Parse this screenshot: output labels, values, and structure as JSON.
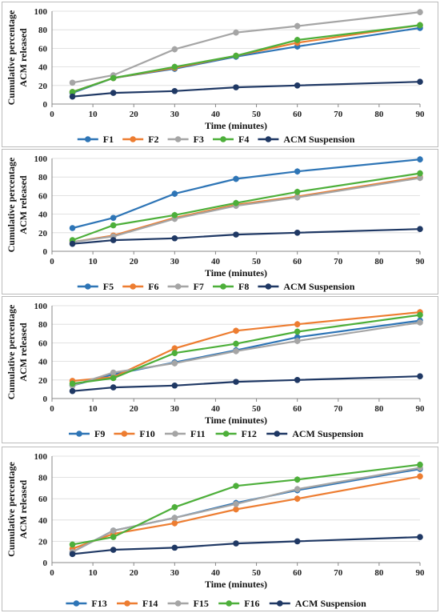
{
  "chart_data": [
    {
      "type": "line",
      "x": [
        5,
        15,
        30,
        45,
        60,
        90
      ],
      "xlabel": "Time (minutes)",
      "ylabel": [
        "Cumulative percentage",
        "ACM released"
      ],
      "xlim": [
        0,
        90
      ],
      "ylim": [
        0,
        100
      ],
      "xticks": [
        "0",
        "10",
        "20",
        "30",
        "40",
        "50",
        "60",
        "70",
        "80",
        "90"
      ],
      "yticks": [
        "0",
        "20",
        "40",
        "60",
        "80",
        "100"
      ],
      "legend_position": "bottom",
      "grid": "horizontal",
      "series": [
        {
          "name": "F1",
          "color": "#2e75b6",
          "values": [
            12,
            28,
            38,
            51,
            62,
            82
          ]
        },
        {
          "name": "F2",
          "color": "#ed7d31",
          "values": [
            13,
            28,
            39,
            52,
            66,
            85
          ]
        },
        {
          "name": "F3",
          "color": "#a5a5a5",
          "values": [
            23,
            31,
            59,
            77,
            84,
            99
          ]
        },
        {
          "name": "F4",
          "color": "#4daf3a",
          "values": [
            13,
            28,
            40,
            52,
            69,
            85
          ]
        },
        {
          "name": "ACM Suspension",
          "color": "#1f3864",
          "values": [
            8,
            12,
            14,
            18,
            20,
            24
          ]
        }
      ]
    },
    {
      "type": "line",
      "x": [
        5,
        15,
        30,
        45,
        60,
        90
      ],
      "xlabel": "Time (minutes)",
      "ylabel": [
        "Cumulative percentage",
        "ACM released"
      ],
      "xlim": [
        0,
        90
      ],
      "ylim": [
        0,
        100
      ],
      "xticks": [
        "0",
        "10",
        "20",
        "30",
        "40",
        "50",
        "60",
        "70",
        "80",
        "90"
      ],
      "yticks": [
        "0",
        "20",
        "40",
        "60",
        "80",
        "100"
      ],
      "legend_position": "bottom",
      "grid": "horizontal",
      "series": [
        {
          "name": "F5",
          "color": "#2e75b6",
          "values": [
            25,
            36,
            62,
            78,
            86,
            99
          ]
        },
        {
          "name": "F6",
          "color": "#ed7d31",
          "values": [
            10,
            17,
            36,
            50,
            59,
            80
          ]
        },
        {
          "name": "F7",
          "color": "#a5a5a5",
          "values": [
            10,
            16,
            35,
            49,
            58,
            79
          ]
        },
        {
          "name": "F8",
          "color": "#4daf3a",
          "values": [
            12,
            28,
            39,
            52,
            64,
            84
          ]
        },
        {
          "name": "ACM Suspension",
          "color": "#1f3864",
          "values": [
            8,
            12,
            14,
            18,
            20,
            24
          ]
        }
      ]
    },
    {
      "type": "line",
      "x": [
        5,
        15,
        30,
        45,
        60,
        90
      ],
      "xlabel": "Time (minutes)",
      "ylabel": [
        "Cumulative percentage",
        "ACM released"
      ],
      "xlim": [
        0,
        90
      ],
      "ylim": [
        0,
        100
      ],
      "xticks": [
        "0",
        "10",
        "20",
        "30",
        "40",
        "50",
        "60",
        "70",
        "80",
        "90"
      ],
      "yticks": [
        "0",
        "20",
        "40",
        "60",
        "80",
        "100"
      ],
      "legend_position": "bottom",
      "grid": "horizontal",
      "series": [
        {
          "name": "F9",
          "color": "#2e75b6",
          "values": [
            14,
            26,
            39,
            52,
            66,
            84
          ]
        },
        {
          "name": "F10",
          "color": "#ed7d31",
          "values": [
            19,
            23,
            54,
            73,
            80,
            93
          ]
        },
        {
          "name": "F11",
          "color": "#a5a5a5",
          "values": [
            14,
            28,
            38,
            51,
            62,
            82
          ]
        },
        {
          "name": "F12",
          "color": "#4daf3a",
          "values": [
            16,
            22,
            49,
            59,
            72,
            90
          ]
        },
        {
          "name": "ACM Suspension",
          "color": "#1f3864",
          "values": [
            8,
            12,
            14,
            18,
            20,
            24
          ]
        }
      ]
    },
    {
      "type": "line",
      "x": [
        5,
        15,
        30,
        45,
        60,
        90
      ],
      "xlabel": "Time (minutes)",
      "ylabel": [
        "Cumulative percentage",
        "ACM released"
      ],
      "xlim": [
        0,
        90
      ],
      "ylim": [
        0,
        100
      ],
      "xticks": [
        "0",
        "10",
        "20",
        "30",
        "40",
        "50",
        "60",
        "70",
        "80",
        "90"
      ],
      "yticks": [
        "0",
        "20",
        "40",
        "60",
        "80",
        "100"
      ],
      "legend_position": "bottom",
      "grid": "horizontal",
      "series": [
        {
          "name": "F13",
          "color": "#2e75b6",
          "values": [
            10,
            30,
            42,
            56,
            68,
            88
          ]
        },
        {
          "name": "F14",
          "color": "#ed7d31",
          "values": [
            13,
            27,
            37,
            50,
            60,
            81
          ]
        },
        {
          "name": "F15",
          "color": "#a5a5a5",
          "values": [
            10,
            30,
            42,
            55,
            69,
            89
          ]
        },
        {
          "name": "F16",
          "color": "#4daf3a",
          "values": [
            17,
            24,
            52,
            72,
            78,
            92
          ]
        },
        {
          "name": "ACM Suspension",
          "color": "#1f3864",
          "values": [
            8,
            12,
            14,
            18,
            20,
            24
          ]
        }
      ]
    }
  ]
}
